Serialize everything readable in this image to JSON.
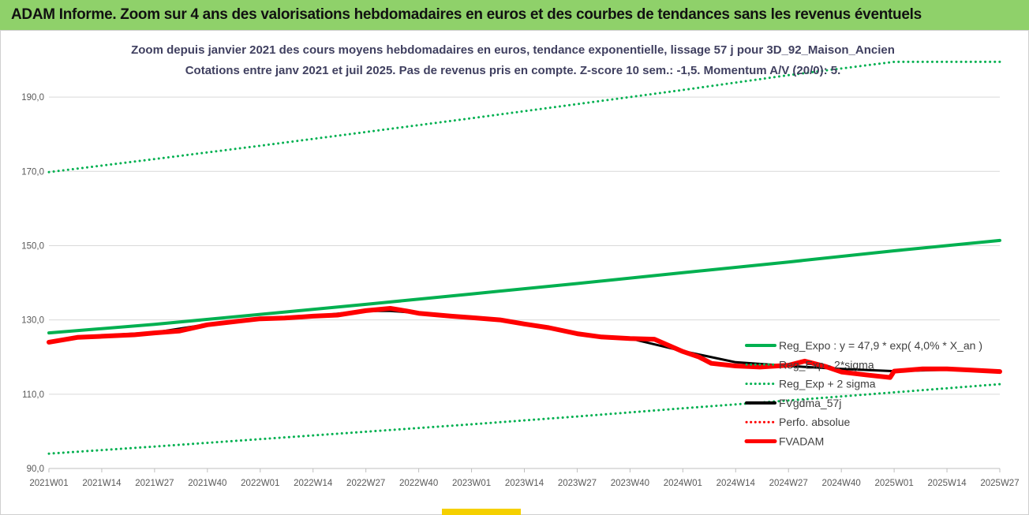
{
  "banner": {
    "text": "ADAM Informe. Zoom sur 4 ans des valorisations hebdomadaires en euros et des courbes de tendances sans les revenus éventuels"
  },
  "chart_data": {
    "type": "line",
    "title": "Zoom depuis janvier 2021 des cours moyens hebdomadaires en euros, tendance exponentielle, lissage 57 j pour 3D_92_Maison_Ancien",
    "subtitle": "Cotations entre janv 2021 et juil 2025. Pas de revenus pris en compte. Z-score 10 sem.: -1,5. Momentum A/V (20/0): 5.",
    "xlabel": "",
    "ylabel": "",
    "x_ticks": [
      "2021W01",
      "2021W14",
      "2021W27",
      "2021W40",
      "2022W01",
      "2022W14",
      "2022W27",
      "2022W40",
      "2023W01",
      "2023W14",
      "2023W27",
      "2023W40",
      "2024W01",
      "2024W14",
      "2024W27",
      "2024W40",
      "2025W01",
      "2025W14",
      "2025W27"
    ],
    "y_ticks": [
      "90,0",
      "110,0",
      "130,0",
      "150,0",
      "170,0",
      "190,0"
    ],
    "y_tick_values": [
      90,
      110,
      130,
      150,
      170,
      190
    ],
    "ylim": [
      90,
      200
    ],
    "grid": true,
    "legend_position": "right",
    "series": [
      {
        "name": "Reg_Expo : y = 47,9 * exp( 4,0% *  X_an )",
        "color": "#00b050",
        "style": "solid",
        "points": [
          [
            "2021W01",
            126.5
          ],
          [
            "2021W27",
            128.8
          ],
          [
            "2022W01",
            131.5
          ],
          [
            "2022W27",
            134.2
          ],
          [
            "2023W01",
            137.0
          ],
          [
            "2023W27",
            139.8
          ],
          [
            "2024W01",
            142.7
          ],
          [
            "2024W27",
            145.6
          ],
          [
            "2025W01",
            148.6
          ],
          [
            "2025W27",
            151.4
          ]
        ]
      },
      {
        "name": "Reg_Exp - 2*sigma",
        "color": "#00b050",
        "style": "dotted",
        "points": [
          [
            "2021W01",
            94.0
          ],
          [
            "2021W27",
            95.9
          ],
          [
            "2022W01",
            97.9
          ],
          [
            "2022W27",
            99.9
          ],
          [
            "2023W01",
            101.9
          ],
          [
            "2023W27",
            104.0
          ],
          [
            "2024W01",
            106.2
          ],
          [
            "2024W27",
            108.3
          ],
          [
            "2025W01",
            110.5
          ],
          [
            "2025W27",
            112.7
          ]
        ]
      },
      {
        "name": "Reg_Exp + 2 sigma",
        "color": "#00b050",
        "style": "dotted",
        "points": [
          [
            "2021W01",
            169.8
          ],
          [
            "2021W27",
            173.3
          ],
          [
            "2022W01",
            176.9
          ],
          [
            "2022W27",
            180.6
          ],
          [
            "2023W01",
            184.3
          ],
          [
            "2023W27",
            188.1
          ],
          [
            "2024W01",
            191.9
          ],
          [
            "2024W27",
            195.9
          ],
          [
            "2025W01",
            199.5
          ],
          [
            "2025W27",
            199.5
          ]
        ]
      },
      {
        "name": "FVgdma_57j",
        "color": "#000000",
        "style": "solid",
        "points": [
          [
            "2021W01",
            124.2
          ],
          [
            "2021W14",
            125.8
          ],
          [
            "2021W27",
            126.6
          ],
          [
            "2021W40",
            128.8
          ],
          [
            "2022W01",
            130.2
          ],
          [
            "2022W14",
            131.0
          ],
          [
            "2022W27",
            132.4
          ],
          [
            "2022W33",
            132.4
          ],
          [
            "2022W40",
            131.9
          ],
          [
            "2023W01",
            130.6
          ],
          [
            "2023W14",
            129.0
          ],
          [
            "2023W27",
            126.2
          ],
          [
            "2023W40",
            125.0
          ],
          [
            "2024W01",
            121.6
          ],
          [
            "2024W14",
            118.6
          ],
          [
            "2024W27",
            117.6
          ],
          [
            "2024W40",
            116.8
          ],
          [
            "2025W01",
            116.2
          ],
          [
            "2025W14",
            116.6
          ],
          [
            "2025W27",
            116.3
          ]
        ]
      },
      {
        "name": "Perfo. absolue",
        "color": "#ff0000",
        "style": "dotted",
        "points": []
      },
      {
        "name": "FVADAM",
        "color": "#ff0000",
        "style": "solid",
        "points": [
          [
            "2021W01",
            124.0
          ],
          [
            "2021W08",
            125.3
          ],
          [
            "2021W14",
            125.6
          ],
          [
            "2021W22",
            126.0
          ],
          [
            "2021W27",
            126.5
          ],
          [
            "2021W33",
            127.0
          ],
          [
            "2021W40",
            128.7
          ],
          [
            "2021W48",
            129.7
          ],
          [
            "2022W01",
            130.3
          ],
          [
            "2022W07",
            130.5
          ],
          [
            "2022W14",
            131.0
          ],
          [
            "2022W20",
            131.3
          ],
          [
            "2022W27",
            132.5
          ],
          [
            "2022W33",
            133.1
          ],
          [
            "2022W37",
            132.4
          ],
          [
            "2022W40",
            131.8
          ],
          [
            "2022W48",
            131.0
          ],
          [
            "2023W01",
            130.6
          ],
          [
            "2023W08",
            130.0
          ],
          [
            "2023W14",
            128.9
          ],
          [
            "2023W20",
            127.9
          ],
          [
            "2023W27",
            126.3
          ],
          [
            "2023W33",
            125.4
          ],
          [
            "2023W40",
            125.0
          ],
          [
            "2023W46",
            124.8
          ],
          [
            "2024W01",
            121.5
          ],
          [
            "2024W05",
            120.0
          ],
          [
            "2024W08",
            118.3
          ],
          [
            "2024W14",
            117.6
          ],
          [
            "2024W20",
            117.3
          ],
          [
            "2024W27",
            117.8
          ],
          [
            "2024W31",
            118.9
          ],
          [
            "2024W36",
            117.5
          ],
          [
            "2024W40",
            116.0
          ],
          [
            "2024W46",
            115.2
          ],
          [
            "2024W52",
            114.5
          ],
          [
            "2025W01",
            116.2
          ],
          [
            "2025W08",
            116.8
          ],
          [
            "2025W14",
            116.8
          ],
          [
            "2025W20",
            116.5
          ],
          [
            "2025W27",
            116.1
          ]
        ]
      }
    ]
  }
}
